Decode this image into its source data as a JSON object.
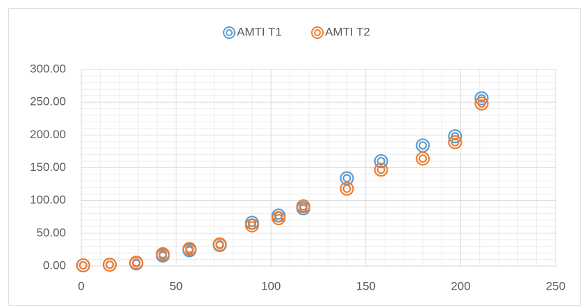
{
  "chart_data": {
    "type": "scatter",
    "series": [
      {
        "name": "AMTI T1",
        "color": "#5b9bd5",
        "x": [
          1,
          15,
          29,
          43,
          57,
          73,
          90,
          104,
          117,
          140,
          158,
          180,
          197,
          211
        ],
        "values": [
          1,
          2,
          4,
          16,
          24,
          32,
          66,
          77,
          88,
          134,
          160,
          184,
          198,
          256
        ]
      },
      {
        "name": "AMTI T2",
        "color": "#ed7d31",
        "x": [
          1,
          15,
          29,
          43,
          57,
          73,
          90,
          104,
          117,
          140,
          158,
          180,
          197,
          211
        ],
        "values": [
          1,
          2,
          5,
          18,
          26,
          33,
          62,
          73,
          91,
          118,
          147,
          164,
          189,
          248
        ]
      }
    ],
    "xlim": [
      0,
      250
    ],
    "xticks": [
      0,
      50,
      100,
      150,
      200,
      250
    ],
    "ylim": [
      0,
      300
    ],
    "yticks": [
      {
        "value": 0,
        "label": "0.00"
      },
      {
        "value": 50,
        "label": "50.00"
      },
      {
        "value": 100,
        "label": "100.00"
      },
      {
        "value": 150,
        "label": "150.00"
      },
      {
        "value": 200,
        "label": "200.00"
      },
      {
        "value": 250,
        "label": "250.00"
      },
      {
        "value": 300,
        "label": "300.00"
      }
    ],
    "grid": true,
    "minor_grid": true,
    "legend": "top"
  }
}
